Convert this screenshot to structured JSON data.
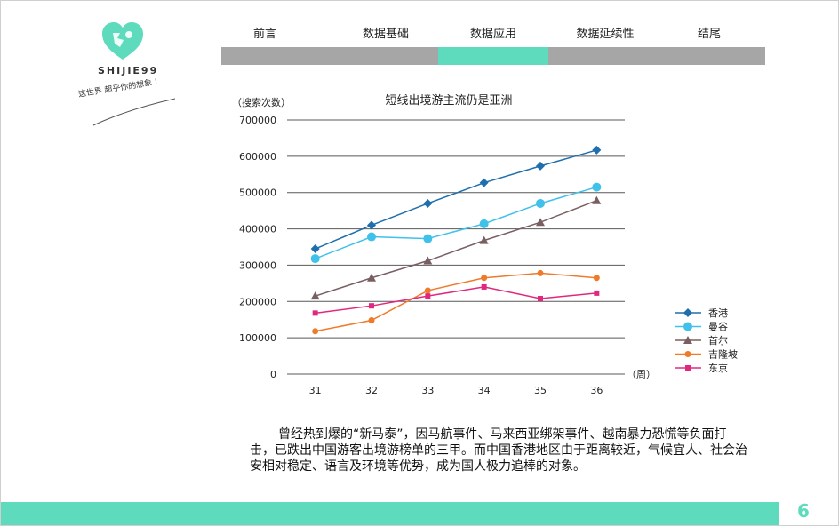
{
  "logo": {
    "name": "SHIJIE99",
    "slogan": "这世界  超乎你的想象  !"
  },
  "nav": {
    "tabs": [
      {
        "label": "前言"
      },
      {
        "label": "数据基础"
      },
      {
        "label": "数据应用"
      },
      {
        "label": "数据延续性"
      },
      {
        "label": "结尾"
      }
    ],
    "active_index": 2
  },
  "colors": {
    "accent": "#5ddbbc",
    "nav_gray": "#a6a6a6"
  },
  "chart_data": {
    "type": "line",
    "title": "短线出境游主流仍是亚洲",
    "ylabel": "（搜索次数）",
    "xlabel": "（周）",
    "categories": [
      "31",
      "32",
      "33",
      "34",
      "35",
      "36"
    ],
    "y_ticks": [
      "700000",
      "600000",
      "500000",
      "400000",
      "300000",
      "200000",
      "100000",
      "0"
    ],
    "ylim": [
      0,
      700000
    ],
    "grid": true,
    "legend_position": "right",
    "series": [
      {
        "name": "香港",
        "color": "#1f6fae",
        "marker": "diamond",
        "values": [
          345000,
          410000,
          470000,
          527000,
          573000,
          617000
        ]
      },
      {
        "name": "曼谷",
        "color": "#3fc1ea",
        "marker": "circle",
        "values": [
          318000,
          378000,
          373000,
          414000,
          470000,
          515000
        ]
      },
      {
        "name": "首尔",
        "color": "#7a5f62",
        "marker": "triangle",
        "values": [
          215000,
          265000,
          312000,
          368000,
          418000,
          478000
        ]
      },
      {
        "name": "吉隆坡",
        "color": "#ef7a2a",
        "marker": "circle-small",
        "values": [
          118000,
          148000,
          230000,
          265000,
          278000,
          265000
        ]
      },
      {
        "name": "东京",
        "color": "#e0287f",
        "marker": "square",
        "values": [
          168000,
          188000,
          215000,
          240000,
          208000,
          223000
        ]
      }
    ]
  },
  "body": {
    "text": "曾经热到爆的“新马泰”，因马航事件、马来西亚绑架事件、越南暴力恐慌等负面打击，已跌出中国游客出境游榜单的三甲。而中国香港地区由于距离较近，气候宜人、社会治安相对稳定、语言及环境等优势，成为国人极力追棒的对象。"
  },
  "footer": {
    "page_number": "6"
  }
}
